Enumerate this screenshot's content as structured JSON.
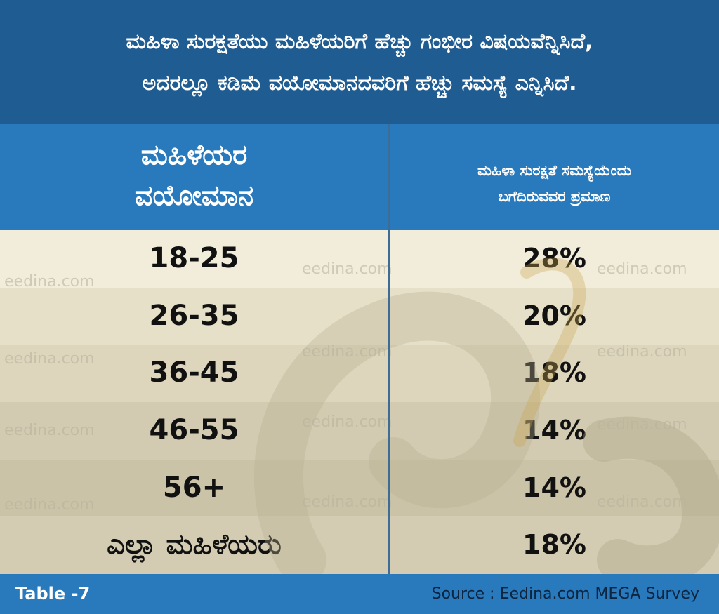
{
  "title": {
    "line1": "ಮಹಿಳಾ ಸುರಕ್ಷತೆಯು ಮಹಿಳೆಯರಿಗೆ ಹೆಚ್ಚು ಗಂಭೀರ ವಿಷಯವೆನ್ನಿಸಿದೆ,",
    "line2": "ಅದರಲ್ಲೂ ಕಡಿಮೆ ವಯೋಮಾನದವರಿಗೆ ಹೆಚ್ಚು ಸಮಸ್ಯೆ ಎನ್ನಿಸಿದೆ."
  },
  "header": {
    "left_line1": "ಮಹಿಳೆಯರ",
    "left_line2": "ವಯೋಮಾನ",
    "right_line1": "ಮಹಿಳಾ ಸುರಕ್ಷತೆ ಸಮಸ್ಯೆಯೆಂದು",
    "right_line2": "ಬಗೆದಿರುವವರ ಪ್ರಮಾಣ"
  },
  "chart_data": {
    "type": "table",
    "columns": [
      "ಮಹಿಳೆಯರ ವಯೋಮಾನ",
      "ಮಹಿಳಾ ಸುರಕ್ಷತೆ ಸಮಸ್ಯೆಯೆಂದು ಬಗೆದಿರುವವರ ಪ್ರಮಾಣ"
    ],
    "rows": [
      {
        "age": "18-25",
        "value": "28%"
      },
      {
        "age": "26-35",
        "value": "20%"
      },
      {
        "age": "36-45",
        "value": "18%"
      },
      {
        "age": "46-55",
        "value": "14%"
      },
      {
        "age": "56+",
        "value": "14%"
      },
      {
        "age": "ಎಲ್ಲಾ ಮಹಿಳೆಯರು",
        "value": "18%"
      }
    ]
  },
  "watermark_text": "eedina.com",
  "footer": {
    "label": "Table -7",
    "source": "Source : Eedina.com MEGA Survey"
  },
  "colors": {
    "title_bg": "#1f5c92",
    "header_bg": "#2979bd",
    "row_bgs": [
      "#f2eddb",
      "#e6e0c9",
      "#ddd6bd",
      "#d3cbb1",
      "#cbc3a7",
      "#d3ccb3"
    ]
  }
}
